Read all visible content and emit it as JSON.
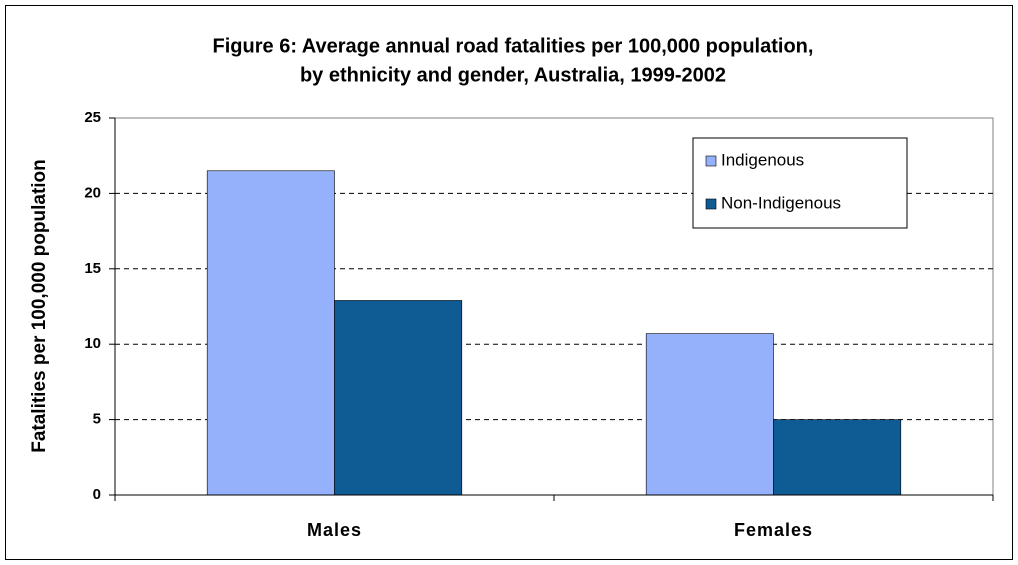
{
  "chart_data": {
    "type": "bar",
    "title": [
      "Figure 6: Average annual road fatalities per 100,000 population,",
      "by ethnicity and gender, Australia, 1999-2002"
    ],
    "y_label": "Fatalities per 100,000 population",
    "categories": [
      "Males",
      "Females"
    ],
    "series": [
      {
        "name": "Indigenous",
        "color": "#96b1fb",
        "values": [
          21.5,
          10.7
        ]
      },
      {
        "name": "Non-Indigenous",
        "color": "#0f5b94",
        "values": [
          12.9,
          5.0
        ]
      }
    ],
    "ylim": [
      0,
      25
    ],
    "yticks": [
      0,
      5,
      10,
      15,
      20,
      25
    ],
    "grid": true,
    "legend": "upper right"
  }
}
